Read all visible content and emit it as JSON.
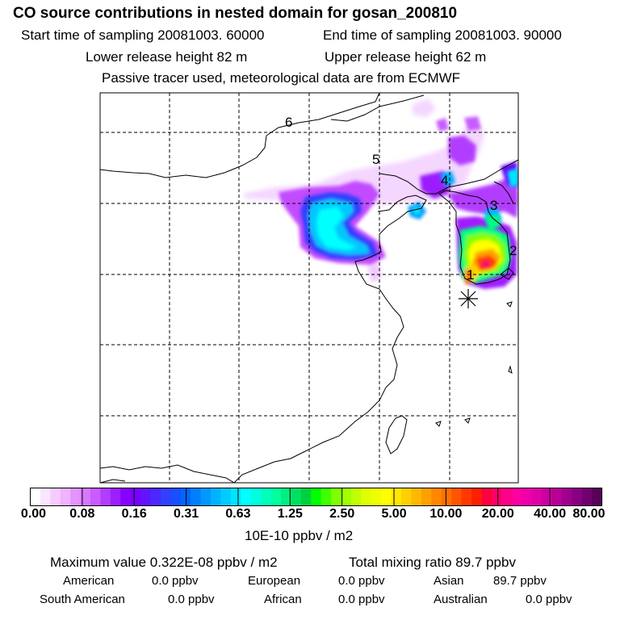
{
  "header": {
    "title": "CO  source contributions in nested domain for gosan_200810",
    "start_time": "Start time of sampling 20081003. 60000",
    "end_time": "End time of sampling 20081003. 90000",
    "lower_release": "Lower release height   82 m",
    "upper_release": "Upper release height   62 m",
    "tracer_note": "Passive tracer used, meteorological data are from ECMWF"
  },
  "chart_data": {
    "type": "heatmap",
    "title": "CO  source contributions in nested domain for gosan_200810",
    "colorbar_label": "10E-10 ppbv / m2",
    "colorbar_ticks": [
      "0.00",
      "0.08",
      "0.16",
      "0.31",
      "0.63",
      "1.25",
      "2.50",
      "5.00",
      "10.00",
      "20.00",
      "40.00",
      "80.00"
    ],
    "colorbar_colors": [
      "#ffffff",
      "#fbe6ff",
      "#f6ccff",
      "#efb3ff",
      "#e394ff",
      "#d677ff",
      "#c85cff",
      "#b23cff",
      "#9b1fff",
      "#8800ff",
      "#7a00ff",
      "#6314ff",
      "#4d28ff",
      "#3340ff",
      "#1a4fff",
      "#0066ff",
      "#0080ff",
      "#0099ff",
      "#00b3ff",
      "#00ccff",
      "#00e5ff",
      "#00ffff",
      "#00ffe0",
      "#00ffbf",
      "#00ff9f",
      "#00f080",
      "#00e060",
      "#00d040",
      "#00ff00",
      "#40ff00",
      "#80ff00",
      "#a0ff00",
      "#c0ff00",
      "#e0ff00",
      "#f0ff00",
      "#ffff00",
      "#ffe600",
      "#ffd000",
      "#ffb800",
      "#ffa000",
      "#ff8800",
      "#ff7000",
      "#ff5500",
      "#ff3a00",
      "#ff2000",
      "#ff0040",
      "#ff0066",
      "#ff0088",
      "#ff00a0",
      "#f000aa",
      "#e000a8",
      "#cc00a0",
      "#b80098",
      "#a00090",
      "#880080",
      "#700070",
      "#580058"
    ],
    "receptor_labels": [
      "1",
      "2",
      "3",
      "4",
      "5",
      "6"
    ]
  },
  "footer": {
    "max_value": "Maximum value  0.322E-08 ppbv / m2",
    "total_mixing": "Total mixing ratio       89.7 ppbv",
    "american": "American",
    "american_val": "0.0 ppbv",
    "european": "European",
    "european_val": "0.0 ppbv",
    "asian": "Asian",
    "asian_val": "89.7 ppbv",
    "south_american": "South American",
    "south_american_val": "0.0 ppbv",
    "african": "African",
    "african_val": "0.0 ppbv",
    "australian": "Australian",
    "australian_val": "0.0 ppbv"
  }
}
